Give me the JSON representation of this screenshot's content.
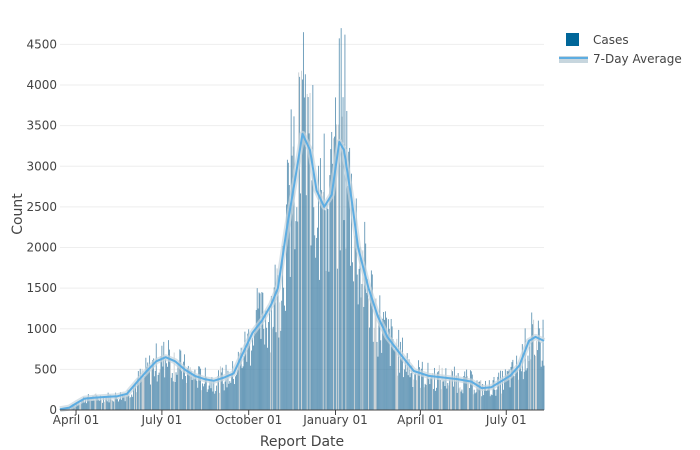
{
  "chart_data": {
    "type": "bar",
    "title": "",
    "xlabel": "Report Date",
    "ylabel": "Count",
    "ylim": [
      0,
      4800
    ],
    "yticks": [
      0,
      500,
      1000,
      1500,
      2000,
      2500,
      3000,
      3500,
      4000,
      4500
    ],
    "xlim": [
      "2020-03-15",
      "2021-08-10"
    ],
    "xticks": [
      {
        "date": "2020-04-01",
        "label": "April 01"
      },
      {
        "date": "2020-07-01",
        "label": "July 01"
      },
      {
        "date": "2020-10-01",
        "label": "October 01"
      },
      {
        "date": "2021-01-01",
        "label": "January 01"
      },
      {
        "date": "2021-04-01",
        "label": "April 01"
      },
      {
        "date": "2021-07-01",
        "label": "July 01"
      }
    ],
    "grid": true,
    "legend_position": "top-right",
    "colors": {
      "cases": "#3f7fa6",
      "average": "#5dade2",
      "grid": "#eeeeee",
      "axis": "#444444"
    },
    "series": [
      {
        "name": "Cases",
        "kind": "bar",
        "note": "daily case counts approximated by the 7-day average profile with visible spikes",
        "points": [
          [
            "2020-03-15",
            10
          ],
          [
            "2020-03-25",
            30
          ],
          [
            "2020-04-01",
            80
          ],
          [
            "2020-04-10",
            140
          ],
          [
            "2020-04-20",
            150
          ],
          [
            "2020-05-01",
            160
          ],
          [
            "2020-05-15",
            170
          ],
          [
            "2020-05-25",
            200
          ],
          [
            "2020-06-05",
            350
          ],
          [
            "2020-06-15",
            480
          ],
          [
            "2020-06-25",
            600
          ],
          [
            "2020-07-05",
            650
          ],
          [
            "2020-07-15",
            600
          ],
          [
            "2020-07-25",
            500
          ],
          [
            "2020-08-05",
            420
          ],
          [
            "2020-08-15",
            380
          ],
          [
            "2020-08-25",
            360
          ],
          [
            "2020-09-05",
            400
          ],
          [
            "2020-09-15",
            450
          ],
          [
            "2020-09-25",
            700
          ],
          [
            "2020-10-05",
            950
          ],
          [
            "2020-10-15",
            1100
          ],
          [
            "2020-10-25",
            1300
          ],
          [
            "2020-11-01",
            1500
          ],
          [
            "2020-11-10",
            2200
          ],
          [
            "2020-11-20",
            2900
          ],
          [
            "2020-11-27",
            3400
          ],
          [
            "2020-12-05",
            3200
          ],
          [
            "2020-12-12",
            2700
          ],
          [
            "2020-12-20",
            2500
          ],
          [
            "2020-12-28",
            2650
          ],
          [
            "2021-01-05",
            3300
          ],
          [
            "2021-01-10",
            3200
          ],
          [
            "2021-01-18",
            2600
          ],
          [
            "2021-01-25",
            2000
          ],
          [
            "2021-02-05",
            1500
          ],
          [
            "2021-02-15",
            1150
          ],
          [
            "2021-02-25",
            900
          ],
          [
            "2021-03-10",
            700
          ],
          [
            "2021-03-25",
            480
          ],
          [
            "2021-04-10",
            420
          ],
          [
            "2021-04-25",
            400
          ],
          [
            "2021-05-10",
            380
          ],
          [
            "2021-05-25",
            350
          ],
          [
            "2021-06-05",
            270
          ],
          [
            "2021-06-15",
            280
          ],
          [
            "2021-06-25",
            350
          ],
          [
            "2021-07-05",
            420
          ],
          [
            "2021-07-15",
            550
          ],
          [
            "2021-07-25",
            850
          ],
          [
            "2021-08-01",
            900
          ],
          [
            "2021-08-10",
            850
          ]
        ],
        "spikes": [
          [
            "2020-11-28",
            4650
          ],
          [
            "2020-11-24",
            4100
          ],
          [
            "2020-12-08",
            4000
          ],
          [
            "2021-01-07",
            4700
          ],
          [
            "2021-01-11",
            4620
          ],
          [
            "2021-01-09",
            3850
          ],
          [
            "2020-11-15",
            3700
          ],
          [
            "2020-12-16",
            3100
          ],
          [
            "2020-10-10",
            1500
          ],
          [
            "2020-07-08",
            860
          ],
          [
            "2021-07-28",
            1200
          ],
          [
            "2021-08-04",
            1100
          ]
        ]
      },
      {
        "name": "7-Day Average",
        "kind": "line",
        "points": [
          [
            "2020-03-15",
            10
          ],
          [
            "2020-03-25",
            30
          ],
          [
            "2020-04-01",
            80
          ],
          [
            "2020-04-10",
            140
          ],
          [
            "2020-04-20",
            150
          ],
          [
            "2020-05-01",
            160
          ],
          [
            "2020-05-15",
            170
          ],
          [
            "2020-05-25",
            200
          ],
          [
            "2020-06-05",
            350
          ],
          [
            "2020-06-15",
            480
          ],
          [
            "2020-06-25",
            600
          ],
          [
            "2020-07-05",
            650
          ],
          [
            "2020-07-15",
            600
          ],
          [
            "2020-07-25",
            500
          ],
          [
            "2020-08-05",
            420
          ],
          [
            "2020-08-15",
            380
          ],
          [
            "2020-08-25",
            360
          ],
          [
            "2020-09-05",
            400
          ],
          [
            "2020-09-15",
            450
          ],
          [
            "2020-09-25",
            700
          ],
          [
            "2020-10-05",
            950
          ],
          [
            "2020-10-15",
            1100
          ],
          [
            "2020-10-25",
            1300
          ],
          [
            "2020-11-01",
            1500
          ],
          [
            "2020-11-10",
            2200
          ],
          [
            "2020-11-20",
            2900
          ],
          [
            "2020-11-27",
            3400
          ],
          [
            "2020-12-05",
            3200
          ],
          [
            "2020-12-12",
            2700
          ],
          [
            "2020-12-20",
            2500
          ],
          [
            "2020-12-28",
            2650
          ],
          [
            "2021-01-05",
            3300
          ],
          [
            "2021-01-10",
            3200
          ],
          [
            "2021-01-18",
            2600
          ],
          [
            "2021-01-25",
            2000
          ],
          [
            "2021-02-05",
            1500
          ],
          [
            "2021-02-15",
            1150
          ],
          [
            "2021-02-25",
            900
          ],
          [
            "2021-03-10",
            700
          ],
          [
            "2021-03-25",
            480
          ],
          [
            "2021-04-10",
            420
          ],
          [
            "2021-04-25",
            400
          ],
          [
            "2021-05-10",
            380
          ],
          [
            "2021-05-25",
            350
          ],
          [
            "2021-06-05",
            270
          ],
          [
            "2021-06-15",
            280
          ],
          [
            "2021-06-25",
            350
          ],
          [
            "2021-07-05",
            420
          ],
          [
            "2021-07-15",
            550
          ],
          [
            "2021-07-25",
            850
          ],
          [
            "2021-08-01",
            900
          ],
          [
            "2021-08-10",
            850
          ]
        ]
      }
    ]
  }
}
